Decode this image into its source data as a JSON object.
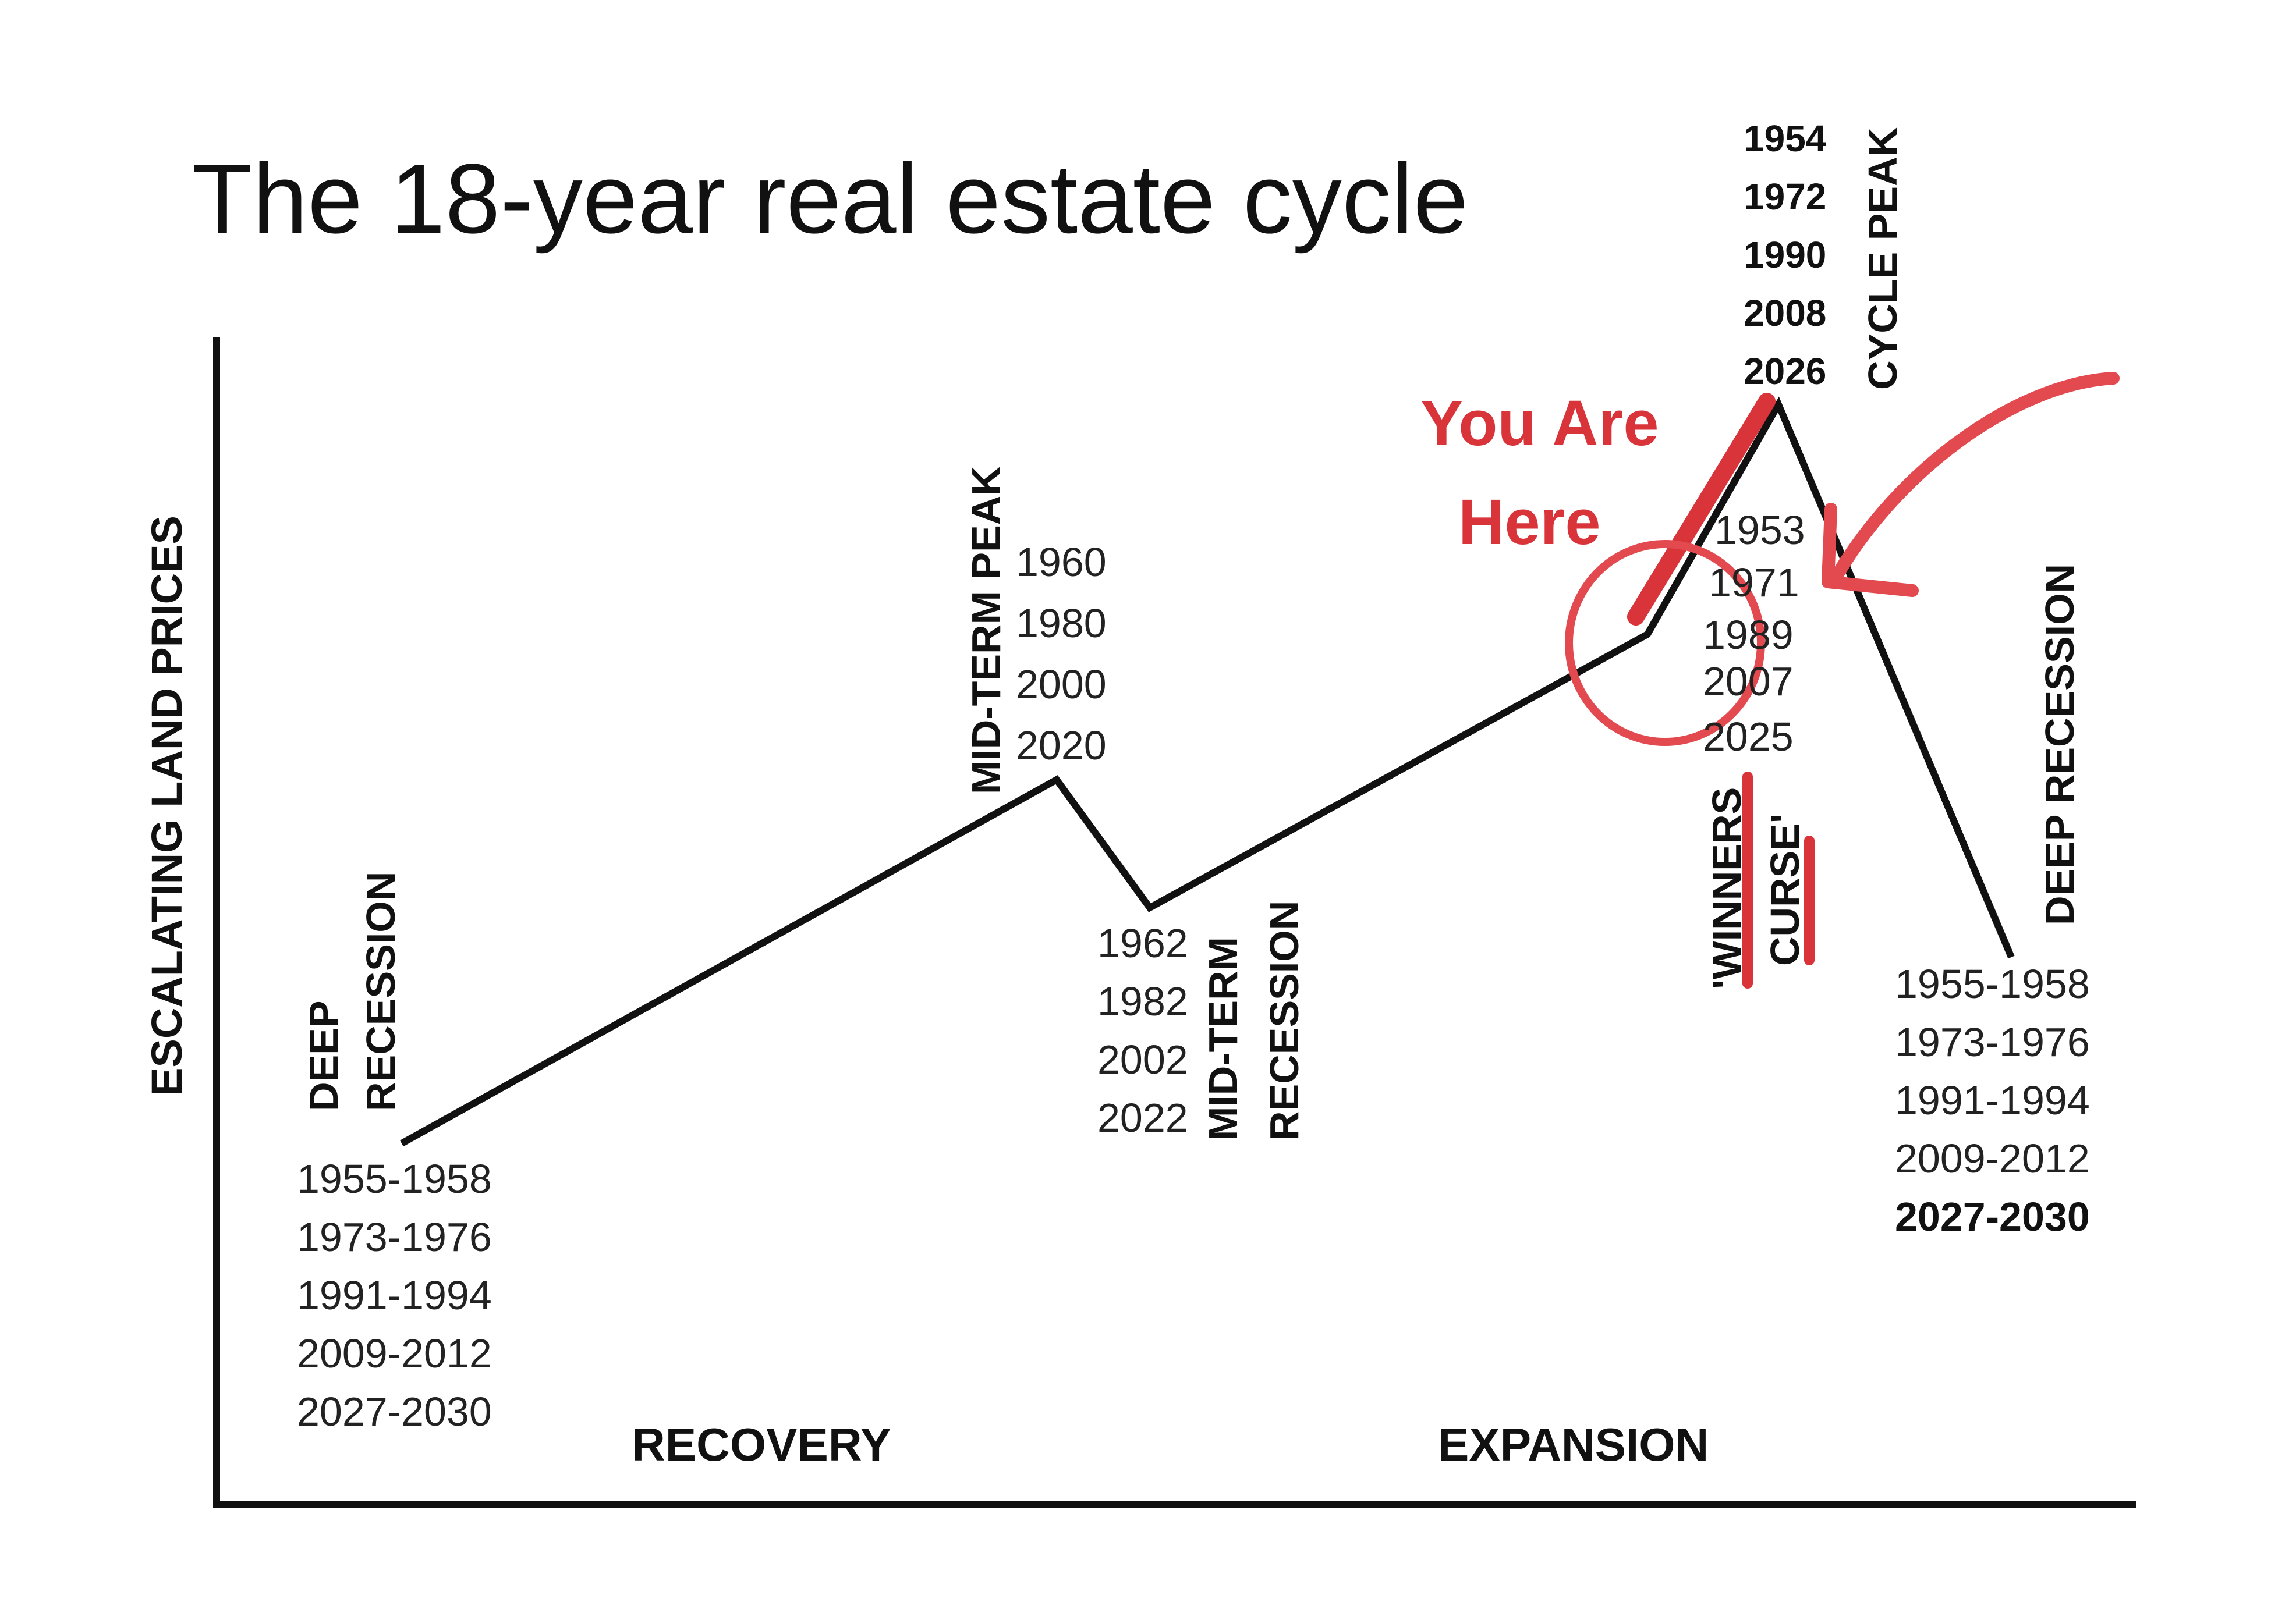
{
  "title": "The 18-year real estate cycle",
  "y_axis_label": "ESCALATING LAND PRICES",
  "phases": {
    "recovery": "RECOVERY",
    "expansion": "EXPANSION"
  },
  "stages": {
    "start": {
      "label_line1": "DEEP",
      "label_line2": "RECESSION",
      "years": [
        "1955-1958",
        "1973-1976",
        "1991-1994",
        "2009-2012",
        "2027-2030"
      ]
    },
    "mid_peak": {
      "label": "MID-TERM PEAK",
      "years": [
        "1960",
        "1980",
        "2000",
        "2020"
      ]
    },
    "mid_recession": {
      "label_line1": "MID-TERM",
      "label_line2": "RECESSION",
      "years": [
        "1962",
        "1982",
        "2002",
        "2022"
      ]
    },
    "pre_peak": {
      "years": [
        "1953",
        "1971",
        "1989",
        "2007",
        "2025"
      ],
      "label_line1": "'WINNERS",
      "label_line2": "CURSE'"
    },
    "cycle_peak": {
      "label": "CYCLE PEAK",
      "years": [
        "1954",
        "1972",
        "1990",
        "2008",
        "2026"
      ]
    },
    "end": {
      "label": "DEEP RECESSION",
      "years": [
        "1955-1958",
        "1973-1976",
        "1991-1994",
        "2009-2012",
        "2027-2030"
      ],
      "bold_index": 4
    }
  },
  "annotation": {
    "line1": "You Are",
    "line2": "Here",
    "color": "#d8343a"
  },
  "colors": {
    "line": "#111111",
    "highlight": "#d8343a"
  }
}
